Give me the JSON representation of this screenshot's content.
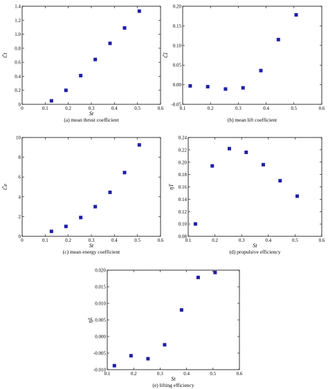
{
  "chart_data": [
    {
      "type": "scatter",
      "caption": "(a) mean thrust coefficient",
      "xlabel": "St",
      "ylabel": "C̄t",
      "xlim": [
        0,
        0.6
      ],
      "ylim": [
        0,
        1.4
      ],
      "xticks": [
        "0",
        "0.1",
        "0.2",
        "0.3",
        "0.4",
        "0.5",
        "0.6"
      ],
      "yticks": [
        "0",
        "0.2",
        "0.4",
        "0.6",
        "0.8",
        "1.0",
        "1.2",
        "1.4"
      ],
      "series": [
        {
          "x": [
            0.127,
            0.19,
            0.254,
            0.317,
            0.381,
            0.444,
            0.508
          ],
          "y": [
            0.05,
            0.2,
            0.41,
            0.64,
            0.87,
            1.09,
            1.33
          ]
        }
      ],
      "marker_color": "#1f1fa8"
    },
    {
      "type": "scatter",
      "caption": "(b) mean lift coefficient",
      "xlabel": "",
      "ylabel": "C̄l",
      "xlim": [
        0.1,
        0.6
      ],
      "ylim": [
        -0.05,
        0.2
      ],
      "xticks": [
        "0.1",
        "0.2",
        "0.3",
        "0.4",
        "0.5",
        "0.6"
      ],
      "yticks": [
        "-0.05",
        "0.00",
        "0.05",
        "0.10",
        "0.15",
        "0.20"
      ],
      "series": [
        {
          "x": [
            0.127,
            0.19,
            0.254,
            0.317,
            0.381,
            0.444,
            0.508
          ],
          "y": [
            -0.003,
            -0.005,
            -0.011,
            -0.008,
            0.036,
            0.115,
            0.178
          ]
        }
      ],
      "marker_color": "#1f1fa8"
    },
    {
      "type": "scatter",
      "caption": "(c) mean energy coefficient",
      "xlabel": "St",
      "ylabel": "C̄e",
      "xlim": [
        0,
        0.6
      ],
      "ylim": [
        0,
        10
      ],
      "xticks": [
        "0",
        "0.1",
        "0.2",
        "0.3",
        "0.4",
        "0.5",
        "0.6"
      ],
      "yticks": [
        "0",
        "2",
        "4",
        "6",
        "8",
        "10"
      ],
      "series": [
        {
          "x": [
            0.127,
            0.19,
            0.254,
            0.317,
            0.381,
            0.444,
            0.508
          ],
          "y": [
            0.5,
            1.0,
            1.9,
            3.0,
            4.45,
            6.45,
            9.25
          ]
        }
      ],
      "marker_color": "#1f1fa8"
    },
    {
      "type": "scatter",
      "caption": "(d) propulsive efficiency",
      "xlabel": "St",
      "ylabel": "ηT",
      "xlim": [
        0.1,
        0.6
      ],
      "ylim": [
        0.08,
        0.24
      ],
      "xticks": [
        "0.1",
        "0.2",
        "0.3",
        "0.4",
        "0.5",
        "0.6"
      ],
      "yticks": [
        "0.08",
        "0.10",
        "0.12",
        "0.14",
        "0.16",
        "0.18",
        "0.20",
        "0.22",
        "0.24"
      ],
      "series": [
        {
          "x": [
            0.127,
            0.19,
            0.254,
            0.317,
            0.381,
            0.444,
            0.508
          ],
          "y": [
            0.1,
            0.194,
            0.222,
            0.216,
            0.196,
            0.17,
            0.145
          ]
        }
      ],
      "marker_color": "#1f1fa8"
    },
    {
      "type": "scatter",
      "caption": "(e) lifting efficiency",
      "xlabel": "St",
      "ylabel": "ηL",
      "xlim": [
        0.1,
        0.6
      ],
      "ylim": [
        -0.01,
        0.02
      ],
      "xticks": [
        "0.1",
        "0.2",
        "0.3",
        "0.4",
        "0.5",
        "0.6"
      ],
      "yticks": [
        "-0.010",
        "-0.005",
        "0.000",
        "0.005",
        "0.010",
        "0.015",
        "0.020"
      ],
      "series": [
        {
          "x": [
            0.127,
            0.19,
            0.254,
            0.317,
            0.381,
            0.444,
            0.508
          ],
          "y": [
            -0.0088,
            -0.0058,
            -0.0067,
            -0.0025,
            0.008,
            0.0178,
            0.0193
          ]
        }
      ],
      "marker_color": "#1f1fa8"
    }
  ]
}
